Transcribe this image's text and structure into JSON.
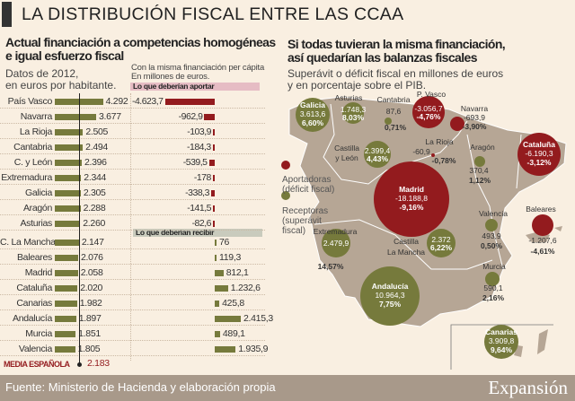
{
  "title": "LA DISTRIBUCIÓN FISCAL ENTRE LAS CCAA",
  "left": {
    "subtitle_1": "Actual financiación a competencias homogéneas",
    "subtitle_2": "e igual esfuerzo fiscal",
    "note_1": "Datos de 2012,",
    "note_2": "en euros por habitante.",
    "middle_note_1": "Con la misma financiación per cápita",
    "middle_note_2": "En millones de euros.",
    "band_aportar": "Lo que deberían aportar",
    "band_recibir": "Lo que deberían recibir",
    "average_label": "MEDIA ESPAÑOLA",
    "average_value": "2.183"
  },
  "right": {
    "subtitle_1": "Si todas tuvieran la misma financiación,",
    "subtitle_2": "así quedarían las balanzas fiscales",
    "note_1": "Superávit o déficit fiscal en millones de euros",
    "note_2": "y en porcentaje sobre el PIB.",
    "legend_aportadoras_1": "Aportadoras",
    "legend_aportadoras_2": "(déficit fiscal)",
    "legend_receptoras_1": "Receptoras",
    "legend_receptoras_2": "(superávit",
    "legend_receptoras_3": "fiscal)"
  },
  "colors": {
    "olive": "#767a3c",
    "red": "#931b1e",
    "map": "#b6a695",
    "background": "#f9efe1",
    "pink_band": "#e6bcc4",
    "grey_band": "#c9cbbd"
  },
  "chart_data": [
    {
      "type": "bar",
      "title": "Actual financiación a competencias homogéneas e igual esfuerzo fiscal",
      "ylabel": "euros por habitante",
      "categories": [
        "País Vasco",
        "Navarra",
        "La Rioja",
        "Cantabria",
        "C. y León",
        "Extremadura",
        "Galicia",
        "Aragón",
        "Asturias",
        "C. La Mancha",
        "Baleares",
        "Madrid",
        "Cataluña",
        "Canarias",
        "Andalucía",
        "Murcia",
        "Valencia"
      ],
      "values": [
        4292,
        3677,
        2505,
        2494,
        2396,
        2344,
        2305,
        2288,
        2260,
        2147,
        2076,
        2058,
        2020,
        1982,
        1897,
        1851,
        1805
      ],
      "labels": [
        "4.292",
        "3.677",
        "2.505",
        "2.494",
        "2.396",
        "2.344",
        "2.305",
        "2.288",
        "2.260",
        "2.147",
        "2.076",
        "2.058",
        "2.020",
        "1.982",
        "1.897",
        "1.851",
        "1.805"
      ],
      "reference_line": 2183
    },
    {
      "type": "bar",
      "title": "Con la misma financiación per cápita",
      "ylabel": "millones de euros",
      "categories": [
        "País Vasco",
        "Navarra",
        "La Rioja",
        "Cantabria",
        "C. y León",
        "Extremadura",
        "Galicia",
        "Aragón",
        "Asturias",
        "C. La Mancha",
        "Baleares",
        "Madrid",
        "Cataluña",
        "Canarias",
        "Andalucía",
        "Murcia",
        "Valencia"
      ],
      "values": [
        -4623.7,
        -962.9,
        -103.9,
        -184.3,
        -539.5,
        -178,
        -338.3,
        -141.5,
        -82.6,
        76,
        119.3,
        812.1,
        1232.6,
        425.8,
        2415.3,
        489.1,
        1935.9
      ],
      "labels": [
        "-4.623,7",
        "-962,9",
        "-103,9",
        "-184,3",
        "-539,5",
        "-178",
        "-338,3",
        "-141,5",
        "-82,6",
        "76",
        "119,3",
        "812,1",
        "1.232,6",
        "425,8",
        "2.415,3",
        "489,1",
        "1.935,9"
      ]
    },
    {
      "type": "bubble-map",
      "bubbles": [
        {
          "name": "Galicia",
          "value": "3.613,6",
          "pct": "6,60%",
          "v": 3613.6
        },
        {
          "name": "Asturias",
          "value": "1.748,3",
          "pct": "8,03%",
          "v": 1748.3
        },
        {
          "name": "Cantabria",
          "value": "87,6",
          "pct": "0,71%",
          "v": 87.6
        },
        {
          "name": "P. Vasco",
          "value": "-3.056,7",
          "pct": "-4,76%",
          "v": -3056.7
        },
        {
          "name": "Navarra",
          "value": "-693,9",
          "pct": "-3,90%",
          "v": -693.9
        },
        {
          "name": "La Rioja",
          "value": "-60,9",
          "pct": "-0,78%",
          "v": -60.9
        },
        {
          "name": "Castilla y León",
          "value": "2.399,4",
          "pct": "4,43%",
          "v": 2399.4
        },
        {
          "name": "Aragón",
          "value": "370,4",
          "pct": "1,12%",
          "v": 370.4
        },
        {
          "name": "Cataluña",
          "value": "-6.190,3",
          "pct": "-3,12%",
          "v": -6190.3
        },
        {
          "name": "Madrid",
          "value": "-18.188,8",
          "pct": "-9,16%",
          "v": -18188.8
        },
        {
          "name": "Baleares",
          "value": "-1.207,6",
          "pct": "-4,61%",
          "v": -1207.6
        },
        {
          "name": "Valencia",
          "value": "493,9",
          "pct": "0,50%",
          "v": 493.9
        },
        {
          "name": "Extremadura",
          "value": "2.479,9",
          "pct": "14,57%",
          "v": 2479.9
        },
        {
          "name": "Castilla La Mancha",
          "value": "2.372",
          "pct": "6,22%",
          "v": 2372
        },
        {
          "name": "Murcia",
          "value": "590,1",
          "pct": "2,16%",
          "v": 590.1
        },
        {
          "name": "Andalucía",
          "value": "10.964,3",
          "pct": "7,75%",
          "v": 10964.3
        },
        {
          "name": "Canarias",
          "value": "3.909,8",
          "pct": "9,64%",
          "v": 3909.8
        }
      ]
    }
  ],
  "footer": {
    "source": "Fuente: Ministerio de Hacienda y elaboración propia",
    "brand": "Expansión"
  }
}
